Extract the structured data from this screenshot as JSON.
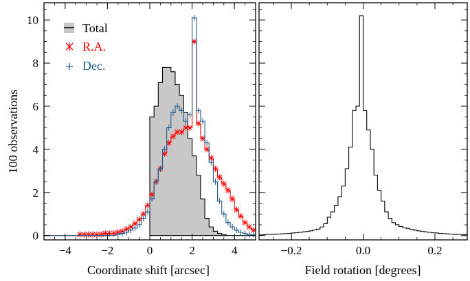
{
  "colors": {
    "total_fill": "#c8c8c8",
    "ra": "#ff0000",
    "dec": "#1f5a8c",
    "axis": "#000000"
  },
  "chart_data": [
    {
      "type": "histogram",
      "title": "",
      "xlabel": "Coordinate shift  [arcsec]",
      "ylabel": "100  observations",
      "xlim": [
        -5,
        5
      ],
      "ylim": [
        -0.2,
        10.8
      ],
      "xticks": [
        -4,
        -2,
        0,
        2,
        4
      ],
      "xtick_labels": [
        "−4",
        "−2",
        "0",
        "2",
        "4"
      ],
      "yticks": [
        0,
        2,
        4,
        6,
        8,
        10
      ],
      "ytick_labels": [
        "0",
        "2",
        "4",
        "6",
        "8",
        "10"
      ],
      "bin_width": 0.2,
      "legend_position": "top-left",
      "series": [
        {
          "name": "Total",
          "style": "filled-step",
          "x_start": 0,
          "values": [
            5.5,
            6.0,
            7.1,
            7.8,
            7.8,
            7.6,
            7.0,
            6.5,
            5.7,
            4.5,
            3.7,
            2.8,
            1.7,
            0.8,
            0.4,
            0.2,
            0.1,
            0.05,
            0.0,
            0.0,
            0.0,
            0.0,
            0.0,
            0.0,
            0.0
          ]
        },
        {
          "name": "R.A.",
          "style": "step-with-x-markers",
          "x_start": -5,
          "values": [
            0,
            0,
            0,
            0,
            0,
            0,
            0,
            0,
            0.05,
            0.05,
            0.05,
            0.05,
            0.05,
            0.05,
            0.1,
            0.1,
            0.1,
            0.15,
            0.2,
            0.3,
            0.4,
            0.55,
            0.75,
            1.0,
            1.4,
            1.9,
            2.5,
            3.1,
            3.8,
            4.3,
            4.6,
            4.8,
            4.8,
            5.0,
            5.0,
            9.0,
            5.2,
            4.5,
            4.0,
            3.6,
            3.1,
            2.7,
            2.4,
            2.1,
            1.7,
            1.2,
            0.9,
            0.6,
            0.4,
            0.25,
            0.15,
            0.1,
            0.05,
            0.05,
            0.05,
            0.05,
            0,
            0,
            0,
            0,
            0,
            0,
            0,
            0,
            0,
            0,
            0,
            0,
            0,
            0
          ]
        },
        {
          "name": "Dec.",
          "style": "step-with-plus-markers",
          "x_start": -5,
          "values": [
            0,
            0,
            0,
            0,
            0,
            0,
            0,
            0,
            0,
            0,
            0,
            0,
            0,
            0,
            0,
            0,
            0,
            0.05,
            0.1,
            0.15,
            0.25,
            0.35,
            0.5,
            0.8,
            1.1,
            1.7,
            2.5,
            3.1,
            4.0,
            5.0,
            5.7,
            6.0,
            5.8,
            5.3,
            5.6,
            10.1,
            5.8,
            5.3,
            4.3,
            3.4,
            2.5,
            1.6,
            1.0,
            0.6,
            0.4,
            0.25,
            0.15,
            0.1,
            0.05,
            0.05,
            0,
            0,
            0,
            0,
            0,
            0,
            0,
            0,
            0,
            0,
            0,
            0,
            0,
            0,
            0,
            0,
            0,
            0,
            0,
            0
          ]
        }
      ]
    },
    {
      "type": "histogram",
      "title": "",
      "xlabel": "Field rotation  [degrees]",
      "ylabel": "",
      "xlim": [
        -0.29,
        0.29
      ],
      "ylim": [
        -0.2,
        10.8
      ],
      "xticks": [
        -0.2,
        0.0,
        0.2
      ],
      "xtick_labels": [
        "−0.2",
        "0.0",
        "0.2"
      ],
      "bin_width": 0.01,
      "series": [
        {
          "name": "",
          "style": "step",
          "x_start": -0.29,
          "values": [
            0.03,
            0.04,
            0.05,
            0.05,
            0.06,
            0.07,
            0.08,
            0.09,
            0.1,
            0.12,
            0.13,
            0.15,
            0.17,
            0.19,
            0.22,
            0.26,
            0.3,
            0.4,
            0.55,
            0.85,
            1.1,
            1.4,
            1.8,
            2.3,
            3.1,
            4.1,
            5.8,
            6.0,
            10.2,
            5.8,
            4.9,
            4.0,
            2.8,
            2.1,
            1.6,
            1.1,
            0.8,
            0.6,
            0.5,
            0.42,
            0.36,
            0.33,
            0.29,
            0.25,
            0.22,
            0.19,
            0.17,
            0.15,
            0.13,
            0.12,
            0.1,
            0.09,
            0.08,
            0.07,
            0.06,
            0.05,
            0.05,
            0.04
          ]
        }
      ]
    }
  ]
}
